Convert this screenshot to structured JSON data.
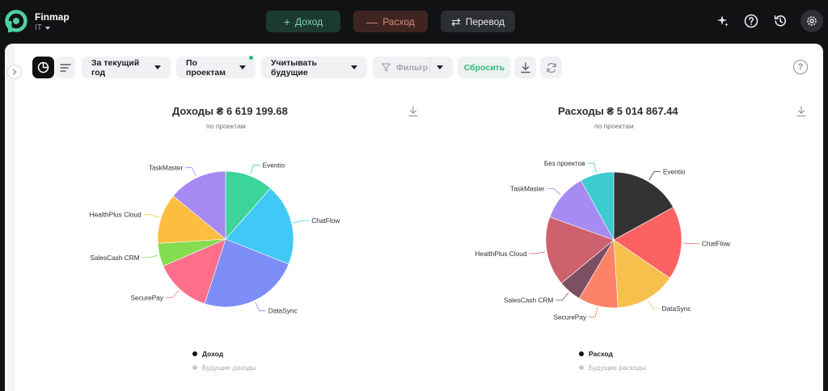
{
  "app": {
    "name": "Finmap",
    "workspace": "IT"
  },
  "header": {
    "income_label": "Доход",
    "expense_label": "Расход",
    "transfer_label": "Перевод",
    "income_symbol": "+",
    "expense_symbol": "—",
    "transfer_symbol": "⇄"
  },
  "toolbar": {
    "period_label": "За текущий год",
    "group_label": "По проектам",
    "future_label": "Учитывать будущие",
    "filter_label": "Фильтр",
    "reset_label": "Сбросить"
  },
  "colors": {
    "accent": "#2fb57e",
    "background": "#111214"
  },
  "chart_data": [
    {
      "type": "pie",
      "title": "Доходы ₴ 6 619 199.68",
      "subtitle": "по проектам",
      "legend": [
        "Доход",
        "Будущие доходы"
      ],
      "slices": [
        {
          "label": "Eventio",
          "value": 11.5,
          "color": "#3dd49b"
        },
        {
          "label": "ChatFlow",
          "value": 19.5,
          "color": "#40c9f7"
        },
        {
          "label": "DataSync",
          "value": 24.0,
          "color": "#7e8ef8"
        },
        {
          "label": "SecurePay",
          "value": 13.5,
          "color": "#ff6f8a"
        },
        {
          "label": "SalesCash CRM",
          "value": 5.5,
          "color": "#84dc51"
        },
        {
          "label": "HealthPlus Cloud",
          "value": 12.0,
          "color": "#fdbd3f"
        },
        {
          "label": "TaskMaster",
          "value": 14.0,
          "color": "#a789f3"
        }
      ]
    },
    {
      "type": "pie",
      "title": "Расходы ₴ 5 014 867.44",
      "subtitle": "по проектам",
      "legend": [
        "Расход",
        "Будущие расходы"
      ],
      "slices": [
        {
          "label": "Eventio",
          "value": 17.0,
          "color": "#333333"
        },
        {
          "label": "ChatFlow",
          "value": 17.5,
          "color": "#fd6263"
        },
        {
          "label": "DataSync",
          "value": 14.5,
          "color": "#f7c04d"
        },
        {
          "label": "SecurePay",
          "value": 9.5,
          "color": "#fd8267"
        },
        {
          "label": "SalesCash CRM",
          "value": 5.5,
          "color": "#7c4f63"
        },
        {
          "label": "HealthPlus Cloud",
          "value": 16.5,
          "color": "#cd616e"
        },
        {
          "label": "TaskMaster",
          "value": 11.5,
          "color": "#a68bf3"
        },
        {
          "label": "Без проектов",
          "value": 8.0,
          "color": "#3ccbcf"
        }
      ]
    }
  ]
}
